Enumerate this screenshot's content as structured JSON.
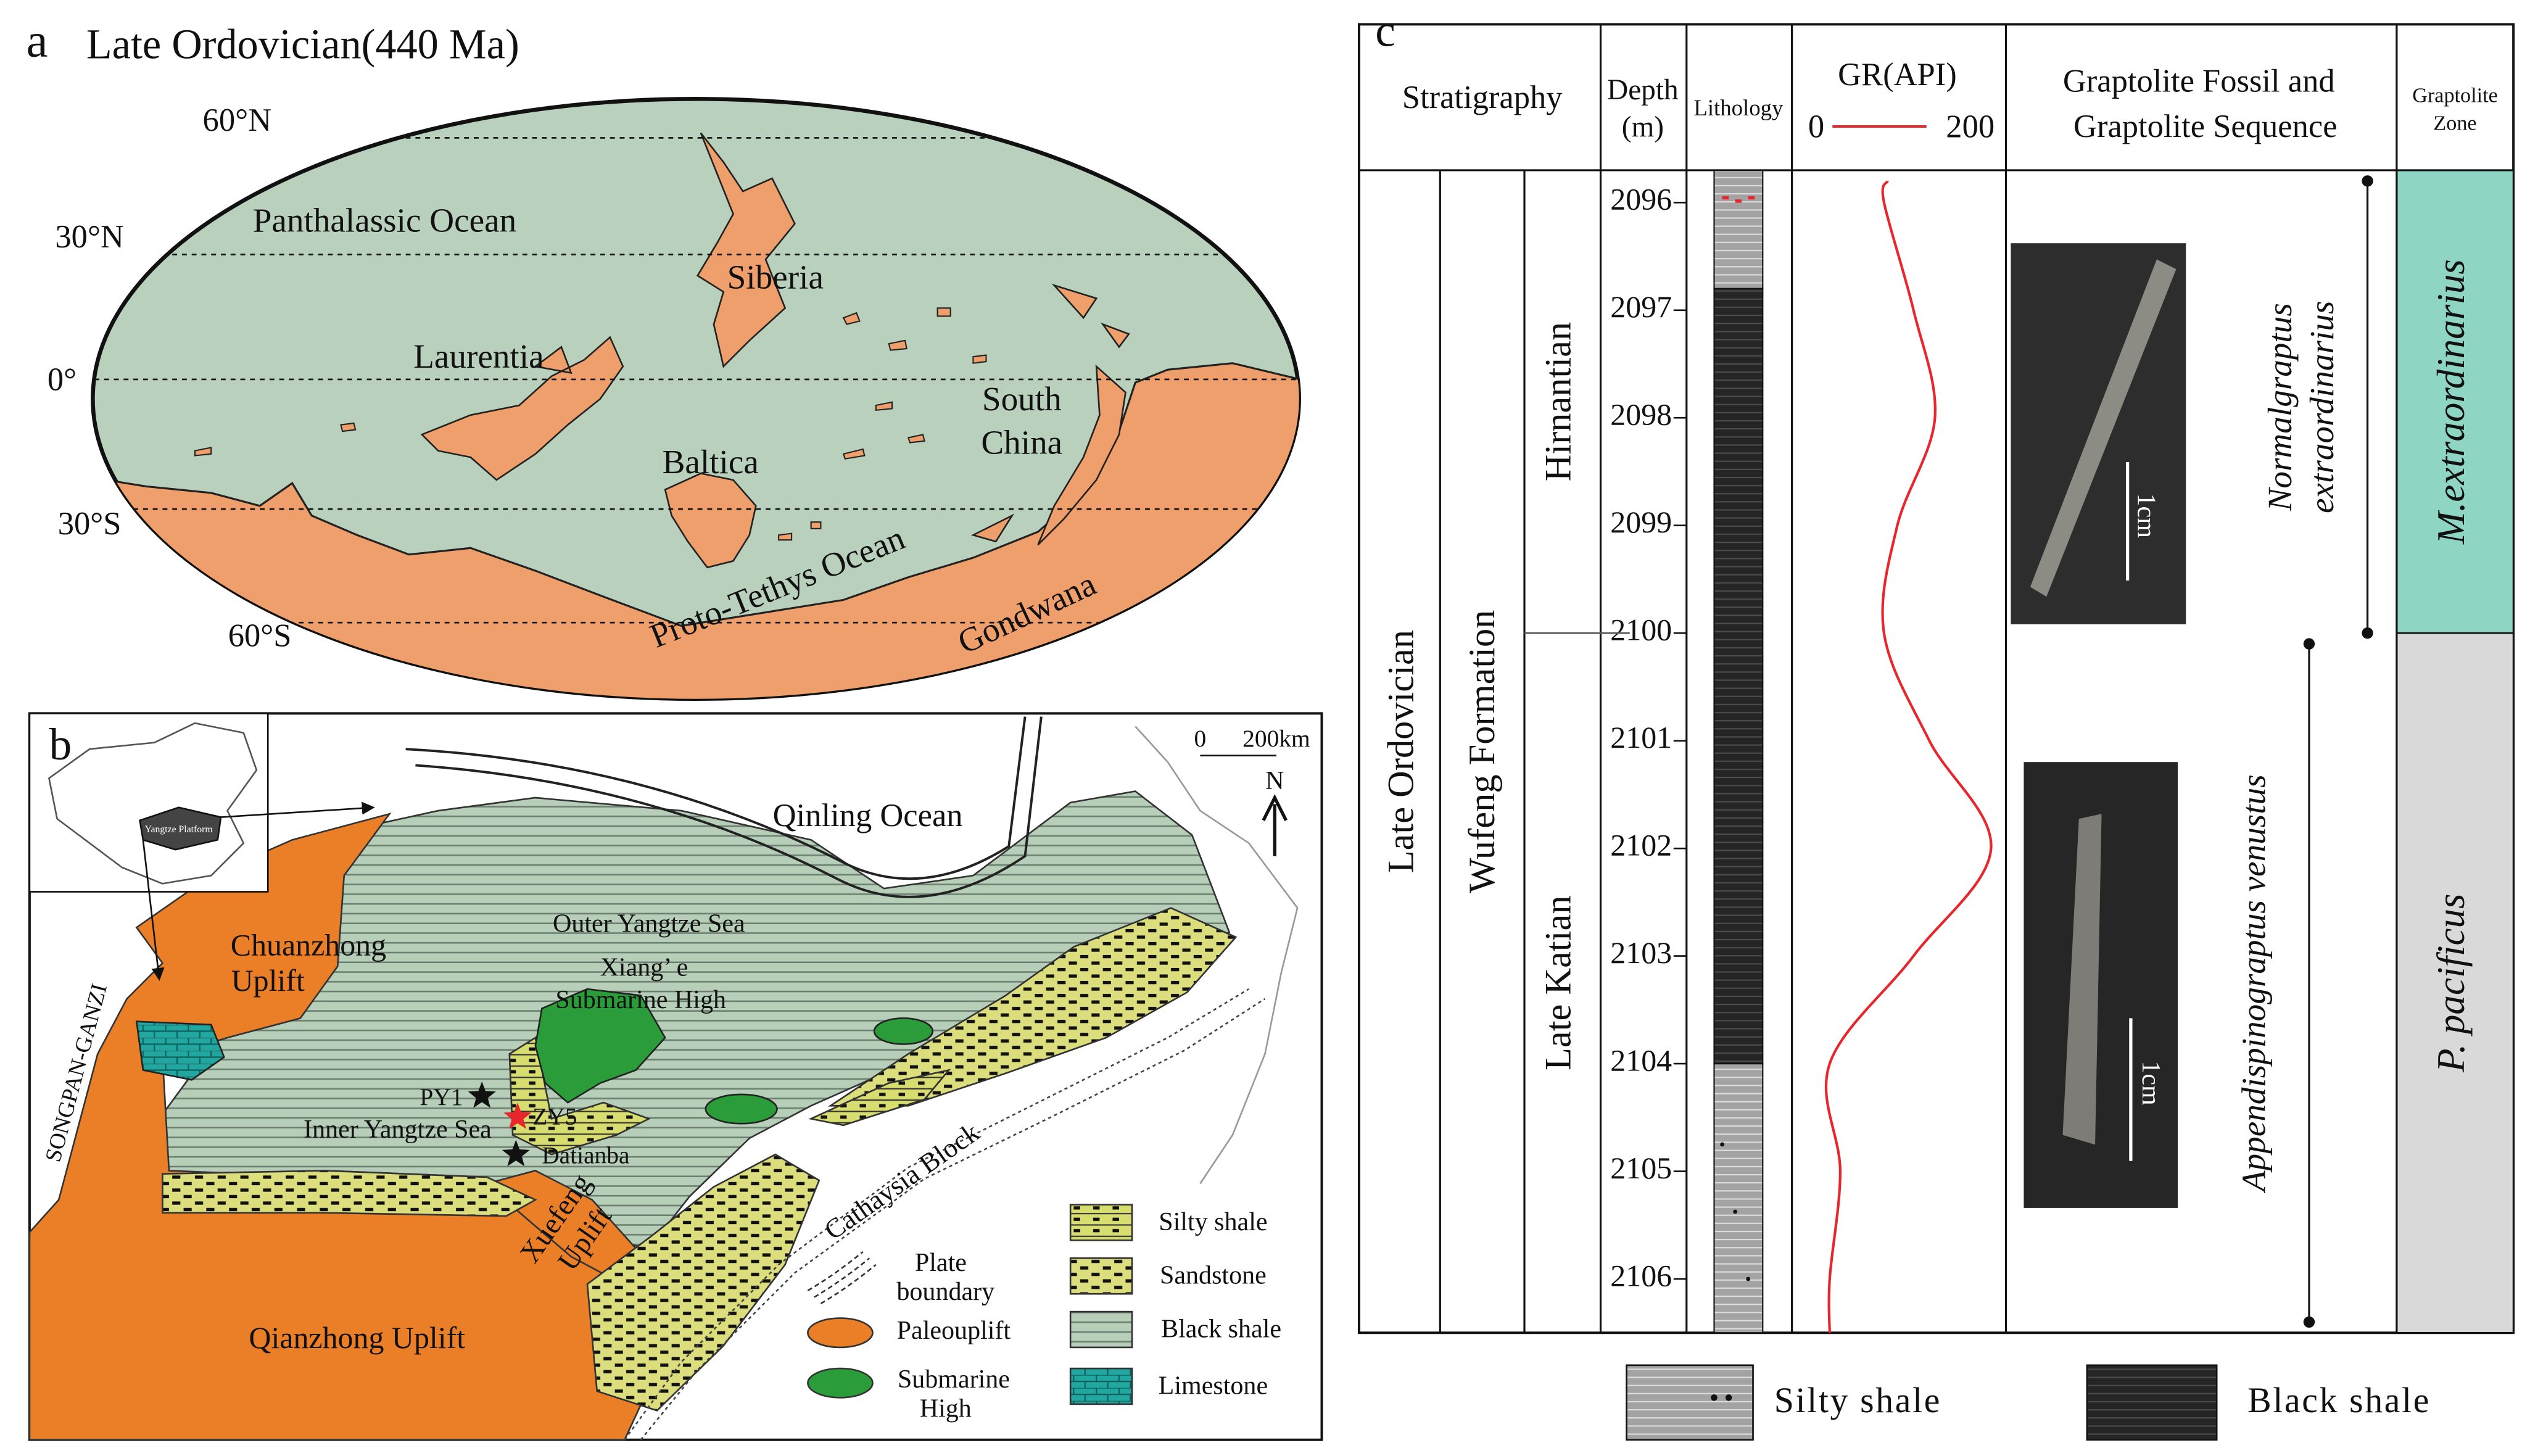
{
  "panel_a": {
    "label": "a",
    "title": "Late Ordovician(440 Ma)",
    "latitudes": [
      "60°N",
      "30°N",
      "0°",
      "30°S",
      "60°S"
    ],
    "oceans": [
      "Panthalassic Ocean",
      "Proto-Tethys Ocean"
    ],
    "continents": [
      "Siberia",
      "Laurentia",
      "Baltica",
      [
        "South",
        "China"
      ],
      "Gondwana"
    ]
  },
  "panel_b": {
    "label": "b",
    "labels": {
      "qinling": "Qinling Ocean",
      "chuanzhong": [
        "Chuanzhong",
        "Uplift"
      ],
      "outer": "Outer Yangtze Sea",
      "xiange": [
        "Xiang’ e",
        "Submarine High"
      ],
      "songpan": "SONGPAN-GANZI",
      "py1": "PY1",
      "zy5": "ZY5",
      "datianba": "Datianba",
      "inner": "Inner Yangtze Sea",
      "xuefeng": [
        "Xuefeng",
        "Uplift"
      ],
      "qianzhong": "Qianzhong Uplift",
      "cathaysia": "Cathaysia Block",
      "inset": "Yangtze Platform"
    },
    "scale": [
      "0",
      "200km"
    ],
    "north": "N",
    "legend": [
      [
        "Plate",
        "boundary"
      ],
      "Paleouplift",
      [
        "Submarine",
        "High"
      ],
      "Silty shale",
      "Sandstone",
      "Black shale",
      "Limestone"
    ]
  },
  "panel_c": {
    "label": "c",
    "headers": {
      "stratigraphy": "Stratigraphy",
      "depth": [
        "Depth",
        "(m)"
      ],
      "lithology": "Lithology",
      "gr": "GR(API)",
      "graptolite": [
        "Graptolite Fossil and",
        "Graptolite Sequence"
      ],
      "zone": [
        "Graptolite",
        "Zone"
      ]
    },
    "depth_lim": [
      2095.7,
      2106.5
    ],
    "depth_ticks": [
      2096,
      2097,
      2098,
      2099,
      2100,
      2101,
      2102,
      2103,
      2104,
      2105,
      2106
    ],
    "gr_lim": [
      0,
      200
    ],
    "gr_ticks": [
      0,
      200
    ],
    "gr_log": {
      "color": "#e8262b",
      "depth": [
        2095.8,
        2096,
        2097,
        2098,
        2099,
        2100,
        2101,
        2102,
        2103,
        2104,
        2105,
        2106,
        2106.5
      ],
      "values": [
        80,
        76,
        109,
        133,
        91,
        76,
        127,
        196,
        109,
        15,
        27,
        15,
        15
      ]
    },
    "system": {
      "name": "Late Ordovician",
      "interval": [
        2095.7,
        2106.5
      ]
    },
    "formation": {
      "name": "Wufeng Formation",
      "interval": [
        2095.7,
        2106.5
      ]
    },
    "stages": [
      {
        "name": "Hirnantian",
        "interval": [
          2095.7,
          2100
        ]
      },
      {
        "name": "Late Katian",
        "interval": [
          2100,
          2106.5
        ]
      }
    ],
    "lithology": {
      "silty_shale": [
        [
          2095.7,
          2096.8
        ],
        [
          2104,
          2106.5
        ]
      ],
      "black_shale": [
        [
          2096.8,
          2104
        ]
      ]
    },
    "graptolites": [
      {
        "name": [
          "Normalgraptus",
          "extraordinarius"
        ],
        "range": [
          2095.8,
          2100
        ]
      },
      {
        "name": "Appendispinograptus venustus",
        "range": [
          2100.1,
          2106.4
        ]
      }
    ],
    "zones": [
      {
        "name": "M.extraordinarius",
        "interval": [
          2095.7,
          2100
        ],
        "color": "#8fd5c3"
      },
      {
        "name": "P. pacificus",
        "interval": [
          2100,
          2106.5
        ],
        "color": "#d9d9d9"
      }
    ],
    "scale_bars": [
      "1cm",
      "1cm"
    ],
    "legend": [
      "Silty shale",
      "Black shale"
    ]
  }
}
